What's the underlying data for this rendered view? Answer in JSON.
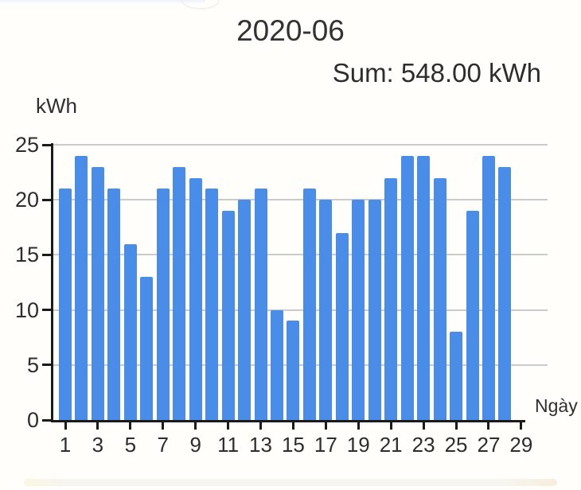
{
  "chart_data": {
    "type": "bar",
    "title": "2020-06",
    "subtitle": "Sum: 548.00 kWh",
    "unit_label": "kWh",
    "xlabel": "Ngày",
    "categories": [
      1,
      2,
      3,
      4,
      5,
      6,
      7,
      8,
      9,
      10,
      11,
      12,
      13,
      14,
      15,
      16,
      17,
      18,
      19,
      20,
      21,
      22,
      23,
      24,
      25,
      26,
      27,
      28
    ],
    "values": [
      21,
      24,
      23,
      21,
      16,
      13,
      21,
      23,
      22,
      21,
      19,
      20,
      21,
      10,
      9,
      21,
      20,
      17,
      20,
      20,
      22,
      24,
      24,
      22,
      8,
      19,
      24,
      23
    ],
    "sum_kwh": 548.0,
    "ylim": [
      0,
      25
    ],
    "yticks": [
      0,
      5,
      10,
      15,
      20,
      25
    ],
    "xticks": [
      1,
      3,
      5,
      7,
      9,
      11,
      13,
      15,
      17,
      19,
      21,
      23,
      25,
      27,
      29
    ],
    "grid": true,
    "legend": "none",
    "colors": {
      "bar": "#4a8de9",
      "grid": "#cbcbcb",
      "axis": "#1b1b1b",
      "text": "#2d2d2d"
    }
  }
}
